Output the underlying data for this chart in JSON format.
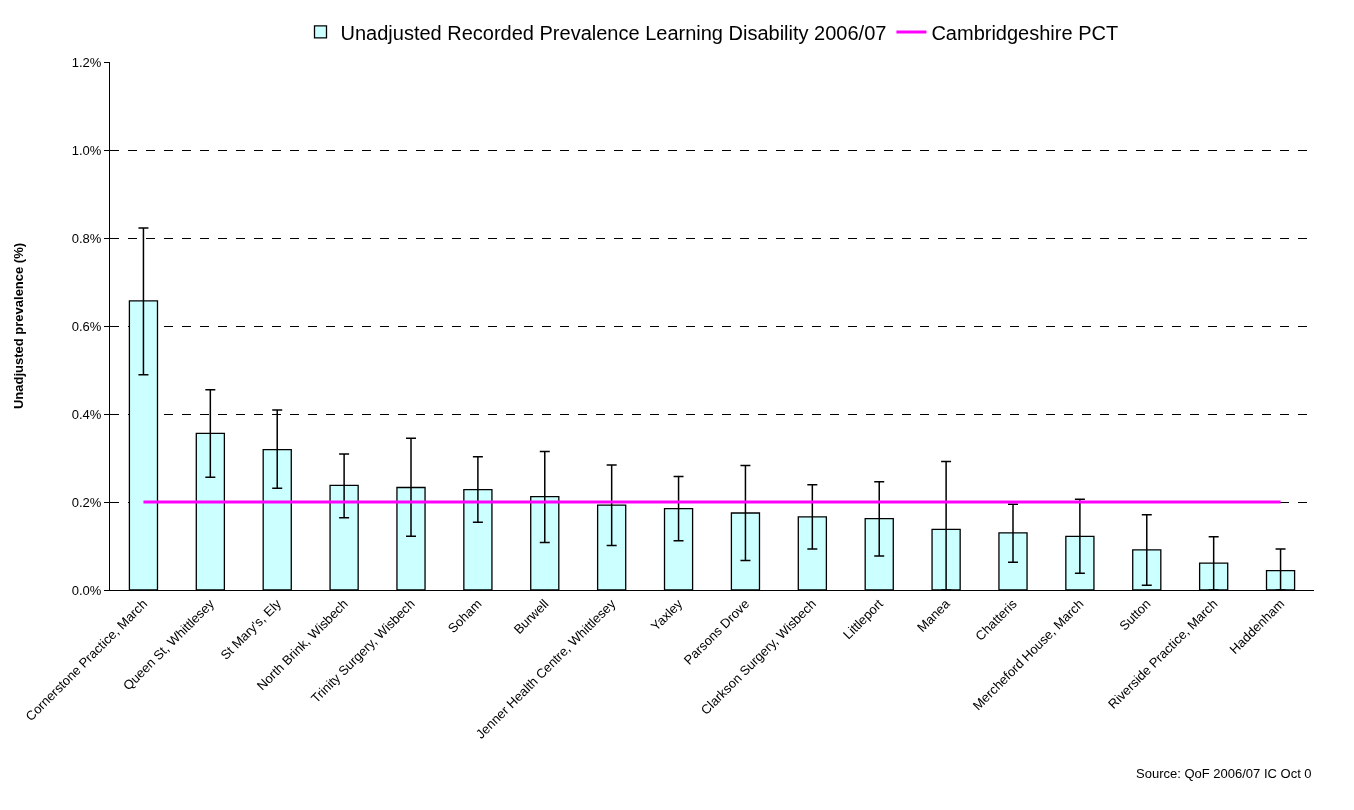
{
  "chart_data": {
    "type": "bar",
    "ylabel": "Unadjusted prevalence (%)",
    "categories": [
      "Cornerstone Practice, March",
      "Queen St, Whittlesey",
      "St Mary's, Ely",
      "North Brink, Wisbech",
      "Trinity Surgery, Wisbech",
      "Soham",
      "Burwell",
      "Jenner Health Centre, Whittlesey",
      "Yaxley",
      "Parsons Drove",
      "Clarkson Surgery, Wisbech",
      "Littleport",
      "Manea",
      "Chatteris",
      "Mercheford House, March",
      "Sutton",
      "Riverside Practice, March",
      "Haddenham"
    ],
    "series": [
      {
        "name": "Unadjusted Recorded Prevalence Learning Disability 2006/07",
        "color": "#ccffff",
        "values": [
          0.657,
          0.356,
          0.319,
          0.238,
          0.233,
          0.228,
          0.212,
          0.193,
          0.185,
          0.175,
          0.166,
          0.162,
          0.138,
          0.13,
          0.122,
          0.091,
          0.061,
          0.044
        ],
        "errors": [
          [
            0.489,
            0.823
          ],
          [
            0.256,
            0.455
          ],
          [
            0.231,
            0.409
          ],
          [
            0.164,
            0.309
          ],
          [
            0.122,
            0.345
          ],
          [
            0.154,
            0.303
          ],
          [
            0.108,
            0.315
          ],
          [
            0.101,
            0.284
          ],
          [
            0.112,
            0.258
          ],
          [
            0.067,
            0.283
          ],
          [
            0.093,
            0.239
          ],
          [
            0.077,
            0.246
          ],
          [
            0,
            0.292
          ],
          [
            0.063,
            0.195
          ],
          [
            0.038,
            0.206
          ],
          [
            0.011,
            0.171
          ],
          [
            0,
            0.121
          ],
          [
            0,
            0.093
          ]
        ]
      },
      {
        "name": "Cambridgeshire PCT",
        "type": "line",
        "color": "#ff00ff",
        "values": [
          0.2,
          0.2,
          0.2,
          0.2,
          0.2,
          0.2,
          0.2,
          0.2,
          0.2,
          0.2,
          0.2,
          0.2,
          0.2,
          0.2,
          0.2,
          0.2,
          0.2,
          0.2
        ]
      }
    ],
    "ylim": [
      0,
      1.2
    ],
    "yticks": [
      {
        "value": 0,
        "label": "0.0%"
      },
      {
        "value": 0.2,
        "label": "0.2%"
      },
      {
        "value": 0.4,
        "label": "0.4%"
      },
      {
        "value": 0.6,
        "label": "0.6%"
      },
      {
        "value": 0.8,
        "label": "0.8%"
      },
      {
        "value": 1.0,
        "label": "1.0%"
      },
      {
        "value": 1.2,
        "label": "1.2%"
      }
    ],
    "grid": "y",
    "legend": "top",
    "marker": "none",
    "annotations": [
      "Source: QoF 2006/07 IC Oct 0"
    ]
  }
}
